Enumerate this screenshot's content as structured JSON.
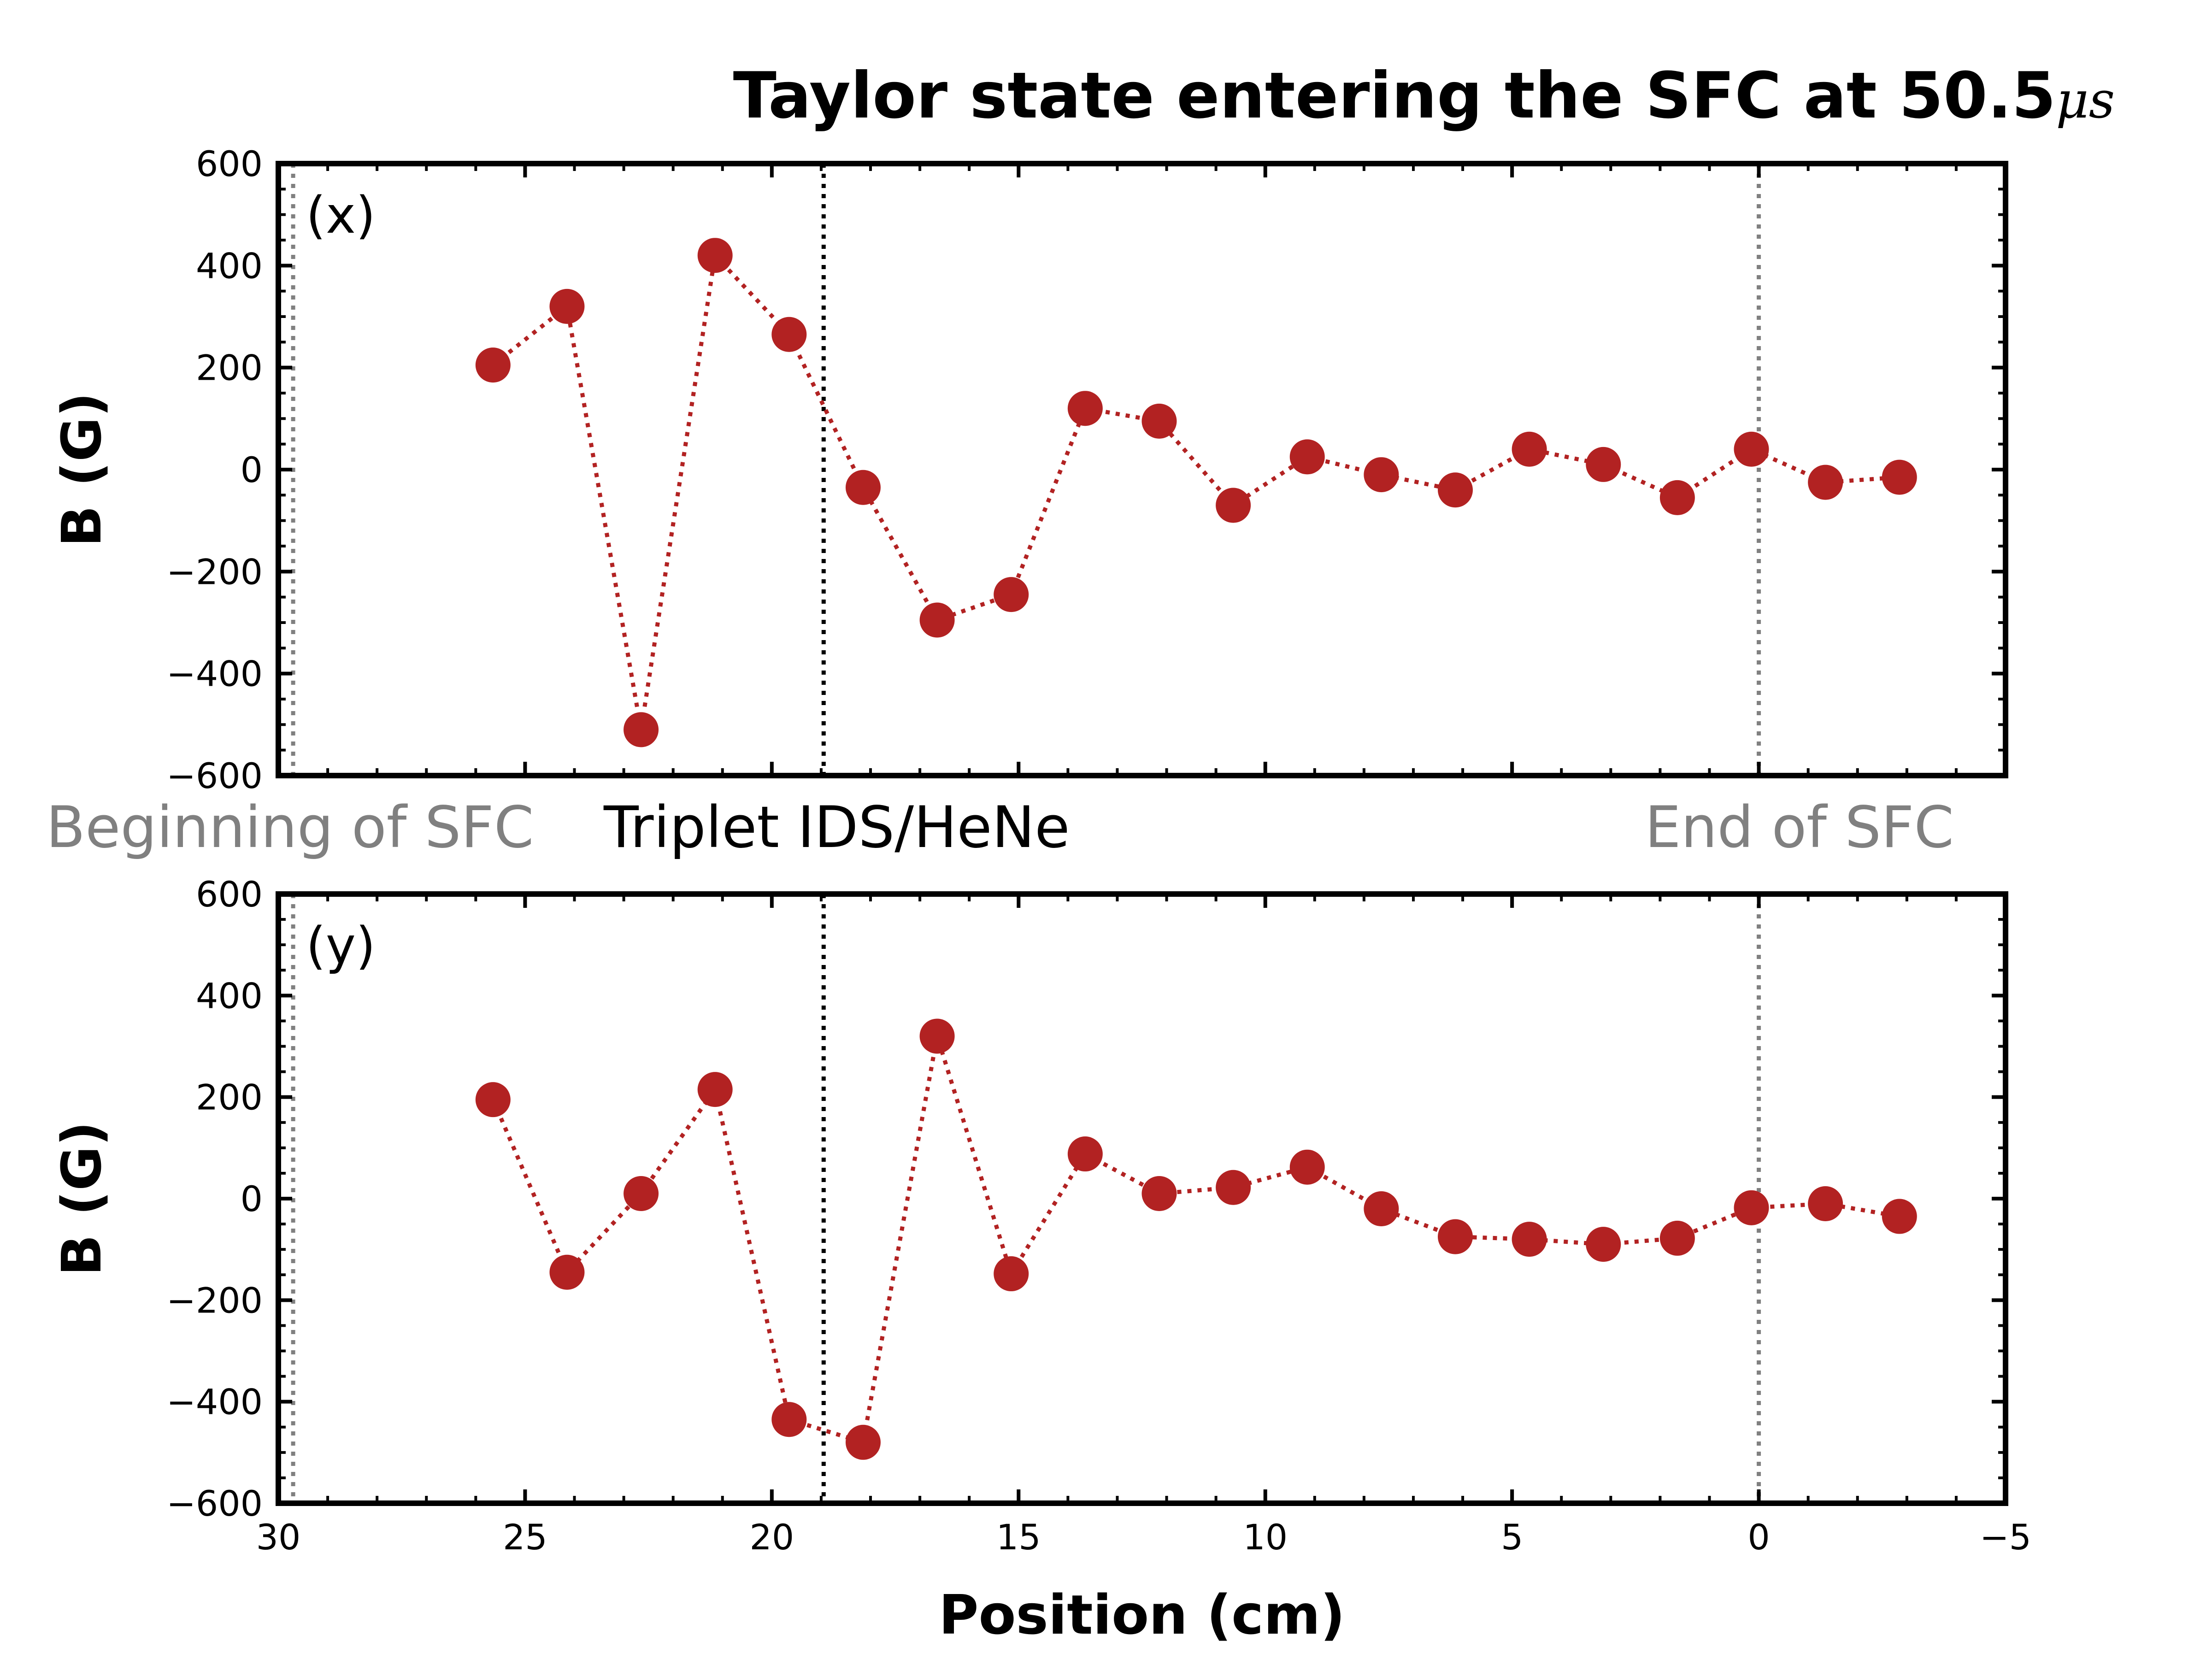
{
  "chart_data": {
    "type": "scatter",
    "title": "Taylor state entering the SFC at 50.5",
    "title_unit": "μs",
    "xlabel": "Position (cm)",
    "xlim": [
      30,
      -5
    ],
    "x_ticks": [
      "30",
      "25",
      "20",
      "15",
      "10",
      "5",
      "0",
      "−5"
    ],
    "y_ticks": [
      "600",
      "400",
      "200",
      "0",
      "−200",
      "−400",
      "−600"
    ],
    "ylim": [
      -600,
      600
    ],
    "marker_color": "#b22222",
    "grid": false,
    "vlines": [
      {
        "x": 29.7,
        "color": "#808080",
        "label": "Beginning of SFC"
      },
      {
        "x": 18.95,
        "color": "#000000",
        "label": "Triplet IDS/HeNe"
      },
      {
        "x": 0,
        "color": "#808080",
        "label": "End of SFC"
      }
    ],
    "x": [
      25.65,
      24.15,
      22.65,
      21.15,
      19.65,
      18.15,
      16.65,
      15.15,
      13.65,
      12.15,
      10.65,
      9.15,
      7.65,
      6.15,
      4.65,
      3.15,
      1.65,
      0.15,
      -1.35,
      -2.85
    ],
    "panels": [
      {
        "label": "(x)",
        "ylabel": "B (G)",
        "values": [
          205,
          320,
          -510,
          420,
          265,
          -35,
          -295,
          -245,
          120,
          95,
          -70,
          25,
          -10,
          -40,
          40,
          10,
          -55,
          40,
          -25,
          -15
        ]
      },
      {
        "label": "(y)",
        "ylabel": "B (G)",
        "values": [
          195,
          -145,
          10,
          215,
          -435,
          -480,
          320,
          -148,
          88,
          10,
          22,
          62,
          -20,
          -75,
          -80,
          -90,
          -78,
          -18,
          -10,
          -35
        ]
      }
    ]
  }
}
